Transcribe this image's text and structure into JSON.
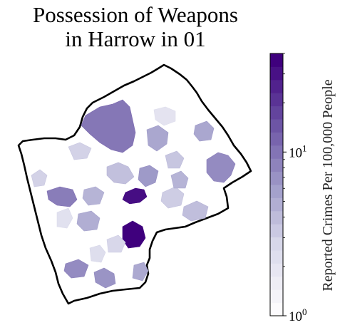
{
  "title_line1": "Possession of Weapons",
  "title_line2": "in Harrow in 01",
  "colorbar": {
    "label": "Reported Crimes Per 100,000 People",
    "scale": "log",
    "range": [
      1,
      40
    ],
    "ticks": [
      {
        "base": "10",
        "exp": "0",
        "value": 1
      },
      {
        "base": "10",
        "exp": "1",
        "value": 10
      }
    ],
    "bands": 20,
    "color_low": "#fcfbfd",
    "color_high": "#3f007d"
  },
  "map": {
    "region": "Harrow",
    "boundary_color": "#000000",
    "areas": [
      {
        "value": 12,
        "level": 0.62
      },
      {
        "value": 40,
        "level": 1.0
      },
      {
        "value": 35,
        "level": 0.96
      },
      {
        "value": 9,
        "level": 0.55
      },
      {
        "value": 11,
        "level": 0.6
      },
      {
        "value": 6,
        "level": 0.45
      },
      {
        "value": 4,
        "level": 0.35
      },
      {
        "value": 3,
        "level": 0.28
      },
      {
        "value": 7,
        "level": 0.5
      },
      {
        "value": 5,
        "level": 0.4
      },
      {
        "value": 2,
        "level": 0.18
      },
      {
        "value": 8,
        "level": 0.52
      },
      {
        "value": 3,
        "level": 0.28
      },
      {
        "value": 6,
        "level": 0.45
      },
      {
        "value": 4,
        "level": 0.33
      },
      {
        "value": 9,
        "level": 0.55
      },
      {
        "value": 2,
        "level": 0.2
      },
      {
        "value": 5,
        "level": 0.42
      },
      {
        "value": 3,
        "level": 0.3
      },
      {
        "value": 4,
        "level": 0.36
      },
      {
        "value": 6,
        "level": 0.44
      },
      {
        "value": 3,
        "level": 0.26
      },
      {
        "value": 2,
        "level": 0.22
      },
      {
        "value": 5,
        "level": 0.4
      }
    ]
  }
}
